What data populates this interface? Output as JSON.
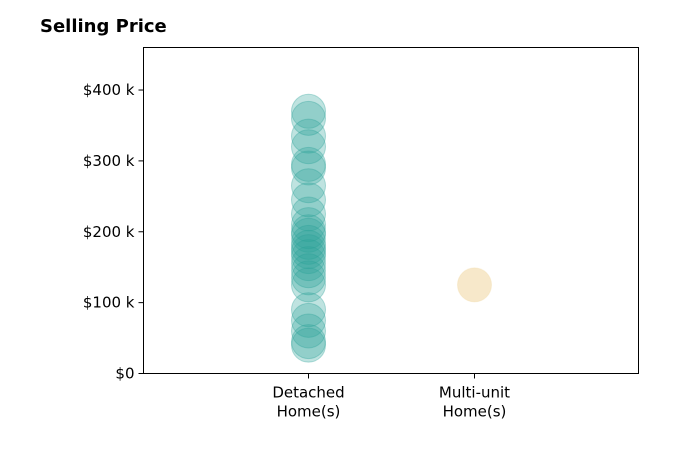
{
  "chart_data": {
    "type": "scatter",
    "title": "Selling Price",
    "xlabel": "",
    "ylabel": "",
    "categories": [
      "Detached\nHome(s)",
      "Multi-unit\nHome(s)"
    ],
    "ylim": [
      0,
      460000
    ],
    "y_ticks": [
      {
        "value": 0,
        "label": "$0"
      },
      {
        "value": 100000,
        "label": "$100 k"
      },
      {
        "value": 200000,
        "label": "$200 k"
      },
      {
        "value": 300000,
        "label": "$300 k"
      },
      {
        "value": 400000,
        "label": "$400 k"
      }
    ],
    "grid": false,
    "series": [
      {
        "category": "Detached\nHome(s)",
        "color": "#2aa198",
        "values": [
          370000,
          360000,
          335000,
          320000,
          295000,
          290000,
          265000,
          245000,
          225000,
          210000,
          200000,
          195000,
          185000,
          178000,
          172000,
          165000,
          155000,
          145000,
          135000,
          125000,
          90000,
          75000,
          60000,
          45000,
          40000
        ]
      },
      {
        "category": "Multi-unit\nHome(s)",
        "color": "#f2d9a6",
        "values": [
          125000
        ]
      }
    ]
  }
}
